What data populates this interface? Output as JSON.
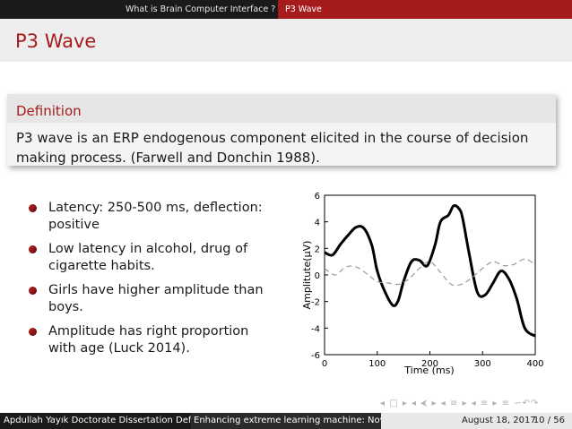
{
  "nav": {
    "section1": "What is Brain Computer Interface ?",
    "section2": "P3 Wave"
  },
  "frame": {
    "title": "P3 Wave"
  },
  "definition": {
    "title": "Definition",
    "body": "P3 wave is an ERP endogenous component elicited in the course of decision making process. (Farwell and Donchin 1988)."
  },
  "bullets": [
    "Latency: 250-500 ms, deflection: positive",
    "Low latency in alcohol, drug of cigarette habits.",
    "Girls have higher amplitude than boys.",
    "Amplitude has right proportion with age (Luck 2014)."
  ],
  "colors": {
    "accent": "#a61b1b",
    "nav_bg": "#1a1a1a"
  },
  "figure": {
    "ylabel": "Amplitute(μV)",
    "xlabel": "Time (ms)",
    "xticks": [
      "0",
      "100",
      "200",
      "300",
      "400"
    ],
    "yticks": [
      "6",
      "4",
      "2",
      "0",
      "-2",
      "-4",
      "-6"
    ]
  },
  "chart_data": {
    "type": "line",
    "xlabel": "Time (ms)",
    "ylabel": "Amplitute(μV)",
    "xlim": [
      0,
      400
    ],
    "ylim": [
      -6,
      6
    ],
    "series": [
      {
        "style": "solid-thick",
        "x": [
          0,
          15,
          30,
          45,
          60,
          75,
          90,
          100,
          115,
          130,
          140,
          150,
          165,
          180,
          195,
          210,
          220,
          235,
          245,
          255,
          262,
          275,
          290,
          305,
          320,
          335,
          350,
          365,
          380,
          400
        ],
        "y": [
          1.7,
          1.5,
          2.3,
          3.0,
          3.6,
          3.5,
          2.2,
          0.3,
          -1.3,
          -2.3,
          -1.9,
          -0.5,
          1.0,
          1.1,
          0.7,
          2.3,
          4.0,
          4.5,
          5.2,
          5.0,
          4.3,
          1.5,
          -1.3,
          -1.5,
          -0.6,
          0.3,
          -0.3,
          -1.8,
          -4.0,
          -4.6
        ]
      },
      {
        "style": "dashed-thin",
        "x": [
          0,
          20,
          40,
          60,
          80,
          100,
          120,
          140,
          160,
          180,
          200,
          220,
          240,
          260,
          280,
          300,
          320,
          340,
          360,
          380,
          400
        ],
        "y": [
          0.5,
          0.0,
          0.6,
          0.6,
          0.1,
          -0.5,
          -0.6,
          -0.7,
          -0.3,
          0.5,
          1.0,
          0.2,
          -0.7,
          -0.7,
          -0.2,
          0.5,
          1.0,
          0.7,
          0.8,
          1.2,
          0.8
        ]
      }
    ]
  },
  "beamer_nav": "◂ □ ▸  ◂ ⮜ ▸  ◂ ≡ ▸  ◂ ≡ ▸   ≡   ∽↶↷",
  "footer": {
    "author": "Apdullah Yayık  Doctorate Dissertation Defence",
    "title": "Enhancing extreme learning machine: Novel extensions and applications",
    "date": "August 18, 2017",
    "page": "10 / 56"
  }
}
